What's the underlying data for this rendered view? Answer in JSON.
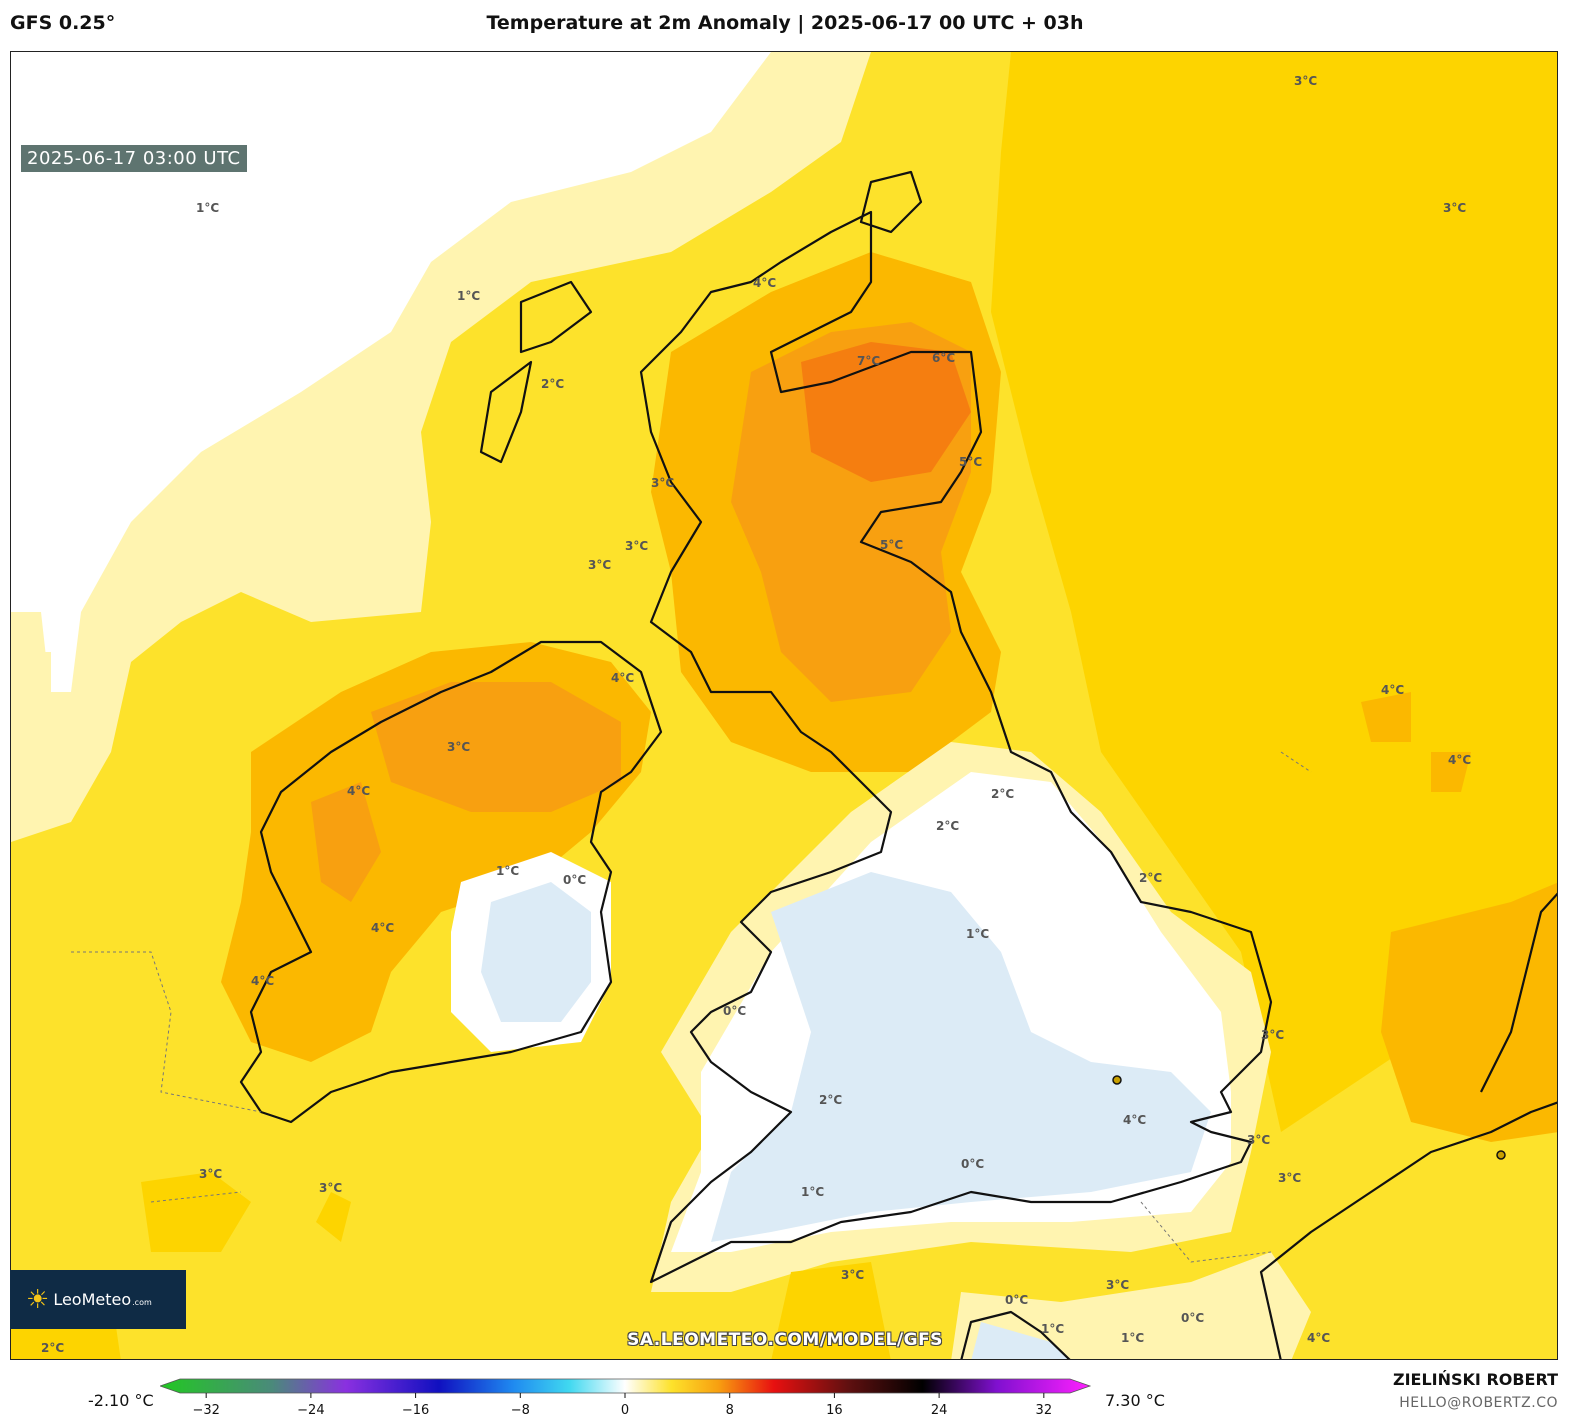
{
  "header": {
    "model": "GFS 0.25°",
    "title": "Temperature at 2m Anomaly | 2025-06-17 00 UTC + 03h"
  },
  "map": {
    "timestamp": "2025-06-17 03:00 UTC",
    "watermark_url": "SA.LEOMETEO.COM/MODEL/GFS",
    "logo": {
      "name": "LeoMeteo",
      "suffix": ".com"
    },
    "contour_labels": [
      "1°C",
      "1°C",
      "2°C",
      "3°C",
      "3°C",
      "3°C",
      "3°C",
      "3°C",
      "3°C",
      "3°C",
      "3°C",
      "4°C",
      "4°C",
      "4°C",
      "4°C",
      "4°C",
      "4°C",
      "4°C",
      "4°C",
      "5°C",
      "5°C",
      "6°C",
      "7°C",
      "2°C",
      "2°C",
      "2°C",
      "1°C",
      "1°C",
      "0°C",
      "0°C",
      "0°C",
      "2°C",
      "1°C",
      "0°C",
      "0°C",
      "1°C",
      "1°C",
      "3°C",
      "3°C",
      "3°C",
      "3°C",
      "3°C",
      "4°C",
      "2°C"
    ]
  },
  "legend": {
    "min_value": "-2.10 °C",
    "max_value": "7.30 °C",
    "ticks": [
      "−32",
      "−24",
      "−16",
      "−8",
      "0",
      "8",
      "16",
      "24",
      "32"
    ],
    "tick_values": [
      -32,
      -24,
      -16,
      -8,
      0,
      8,
      16,
      24,
      32
    ],
    "range": [
      -34,
      34
    ]
  },
  "credit": {
    "author": "ZIELIŃSKI ROBERT",
    "email": "HELLO@ROBERTZ.CO"
  },
  "colors": {
    "white_zone": "#ffffff",
    "anomaly_1": "#fff4b0",
    "anomaly_2": "#fde22b",
    "anomaly_3": "#fdd400",
    "anomaly_4": "#fbb800",
    "anomaly_5": "#f8a010",
    "anomaly_6": "#f57e10",
    "negative": "#dcebf6"
  }
}
